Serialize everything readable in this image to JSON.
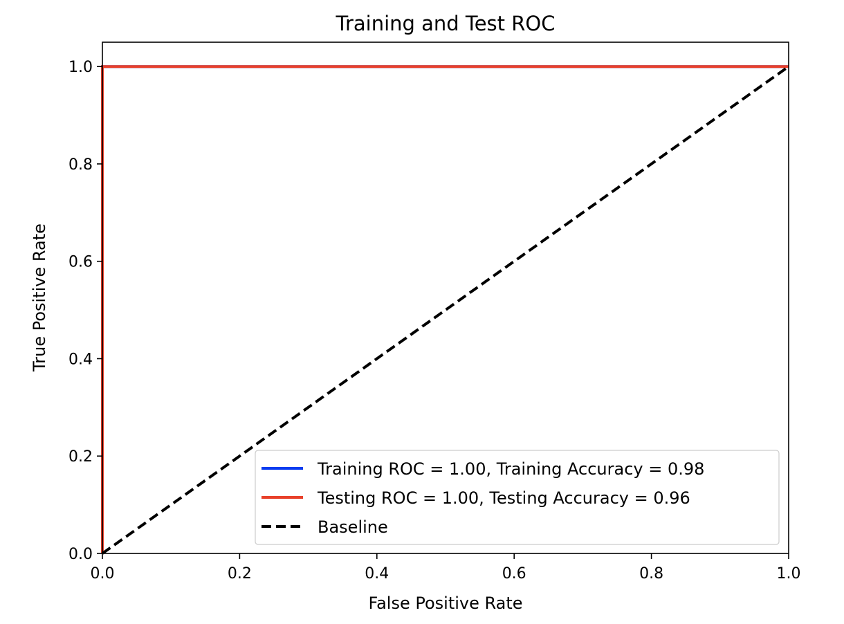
{
  "chart_data": {
    "type": "line",
    "title": "Training and Test ROC",
    "xlabel": "False Positive Rate",
    "ylabel": "True Positive Rate",
    "xlim": [
      0.0,
      1.0
    ],
    "ylim": [
      0.0,
      1.05
    ],
    "xticks": [
      "0.0",
      "0.2",
      "0.4",
      "0.6",
      "0.8",
      "1.0"
    ],
    "yticks": [
      "0.0",
      "0.2",
      "0.4",
      "0.6",
      "0.8",
      "1.0"
    ],
    "grid": false,
    "legend_placement": "lower-right",
    "series": [
      {
        "name": "Training ROC = 1.00, Training Accuracy = 0.98",
        "color": "#0a3cf0",
        "style": "solid",
        "x": [
          0.0,
          0.0,
          1.0
        ],
        "y": [
          0.0,
          1.0,
          1.0
        ]
      },
      {
        "name": "Testing ROC = 1.00, Testing Accuracy = 0.96",
        "color": "#e8402a",
        "style": "solid",
        "x": [
          0.0,
          0.0,
          1.0
        ],
        "y": [
          0.0,
          1.0,
          1.0
        ]
      },
      {
        "name": "Baseline",
        "color": "#000000",
        "style": "dashed",
        "x": [
          0.0,
          1.0
        ],
        "y": [
          0.0,
          1.0
        ]
      }
    ]
  }
}
